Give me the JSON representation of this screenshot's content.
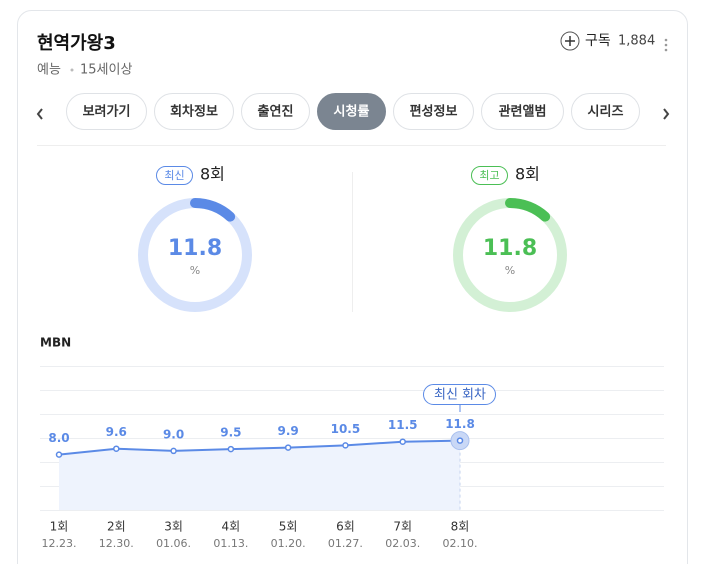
{
  "header": {
    "title": "현역가왕3",
    "genre": "예능",
    "rating": "15세이상",
    "subscribe_label": "구독",
    "subscribers": "1,884"
  },
  "tabs": [
    "보려가기",
    "회차정보",
    "출연진",
    "시청률",
    "편성정보",
    "관련앨범",
    "시리즈"
  ],
  "active_tab": 3,
  "ratings": [
    {
      "badge": "최신",
      "episode": "8회",
      "value": 11.8,
      "unit": "%",
      "color": "#5b8ae6",
      "track": "#d6e2fb"
    },
    {
      "badge": "최고",
      "episode": "8회",
      "value": 11.8,
      "unit": "%",
      "color": "#4bbf55",
      "track": "#d3f0d5"
    }
  ],
  "chart_data": {
    "type": "line",
    "channel": "MBN",
    "callout": "최신 회차",
    "categories": [
      "1회",
      "2회",
      "3회",
      "4회",
      "5회",
      "6회",
      "7회",
      "8회"
    ],
    "dates": [
      "12.23.",
      "12.30.",
      "01.06.",
      "01.13.",
      "01.20.",
      "01.27.",
      "02.03.",
      "02.10."
    ],
    "values": [
      8.0,
      9.6,
      9.0,
      9.5,
      9.9,
      10.5,
      11.5,
      11.8
    ],
    "value_labels": [
      "8.0",
      "9.6",
      "9.0",
      "9.5",
      "9.9",
      "10.5",
      "11.5",
      "11.8"
    ],
    "color": "#5b8ae6",
    "ylim": [
      -7,
      32
    ]
  }
}
